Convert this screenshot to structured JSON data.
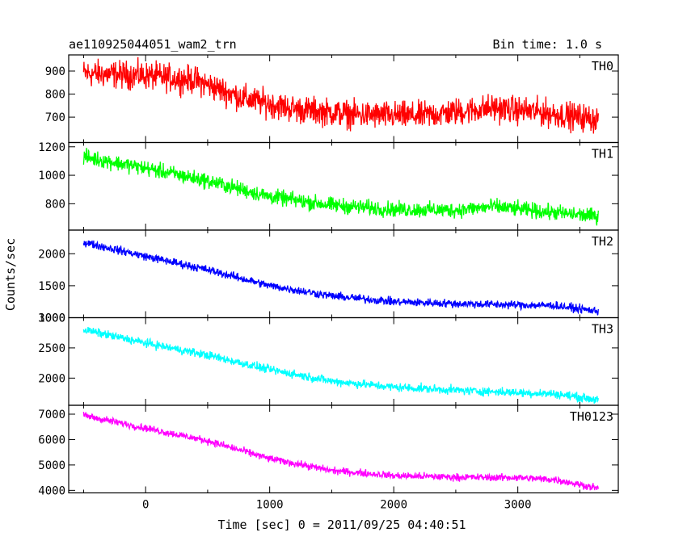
{
  "chart_data": {
    "type": "line",
    "title": "ae110925044051_wam2_trn",
    "subtitle": "Bin time: 1.0 s",
    "xlabel": "Time [sec] 0 = 2011/09/25 04:40:51",
    "ylabel": "Counts/sec",
    "xlim": [
      -620,
      3810
    ],
    "x_ticks": [
      "0",
      "1000",
      "2000",
      "3000"
    ],
    "grid": false,
    "panels": [
      {
        "name": "TH0",
        "color": "#ff0000",
        "ylim": [
          590,
          970
        ],
        "y_ticks": [
          "700",
          "800",
          "900"
        ],
        "noise": 42,
        "trend": [
          [
            -500,
            890
          ],
          [
            0,
            880
          ],
          [
            400,
            860
          ],
          [
            800,
            780
          ],
          [
            1200,
            735
          ],
          [
            1700,
            710
          ],
          [
            2200,
            705
          ],
          [
            2800,
            740
          ],
          [
            3200,
            720
          ],
          [
            3650,
            690
          ]
        ]
      },
      {
        "name": "TH1",
        "color": "#00ff00",
        "ylim": [
          615,
          1230
        ],
        "y_ticks": [
          "800",
          "1000",
          "1200"
        ],
        "noise": 38,
        "trend": [
          [
            -500,
            1130
          ],
          [
            0,
            1050
          ],
          [
            500,
            960
          ],
          [
            1000,
            850
          ],
          [
            1500,
            790
          ],
          [
            2000,
            760
          ],
          [
            2500,
            755
          ],
          [
            2800,
            780
          ],
          [
            3200,
            745
          ],
          [
            3650,
            710
          ]
        ]
      },
      {
        "name": "TH2",
        "color": "#0000ff",
        "ylim": [
          1000,
          2370
        ],
        "y_ticks": [
          "1000",
          "1500",
          "2000"
        ],
        "noise": 45,
        "trend": [
          [
            -500,
            2180
          ],
          [
            0,
            1960
          ],
          [
            500,
            1750
          ],
          [
            1000,
            1500
          ],
          [
            1500,
            1340
          ],
          [
            2000,
            1250
          ],
          [
            2500,
            1220
          ],
          [
            3000,
            1200
          ],
          [
            3300,
            1190
          ],
          [
            3650,
            1100
          ]
        ]
      },
      {
        "name": "TH3",
        "color": "#00ffff",
        "ylim": [
          1550,
          3000
        ],
        "y_ticks": [
          "2000",
          "2500",
          "3000"
        ],
        "noise": 50,
        "trend": [
          [
            -500,
            2800
          ],
          [
            0,
            2580
          ],
          [
            500,
            2380
          ],
          [
            1000,
            2140
          ],
          [
            1500,
            1950
          ],
          [
            2000,
            1850
          ],
          [
            2500,
            1800
          ],
          [
            3000,
            1760
          ],
          [
            3300,
            1740
          ],
          [
            3650,
            1640
          ]
        ]
      },
      {
        "name": "TH0123",
        "color": "#ff00ff",
        "ylim": [
          3900,
          7350
        ],
        "y_ticks": [
          "4000",
          "5000",
          "6000",
          "7000"
        ],
        "noise": 100,
        "trend": [
          [
            -500,
            6950
          ],
          [
            0,
            6450
          ],
          [
            500,
            5950
          ],
          [
            1000,
            5250
          ],
          [
            1500,
            4780
          ],
          [
            2000,
            4580
          ],
          [
            2500,
            4520
          ],
          [
            3000,
            4500
          ],
          [
            3300,
            4420
          ],
          [
            3650,
            4080
          ]
        ]
      }
    ]
  }
}
